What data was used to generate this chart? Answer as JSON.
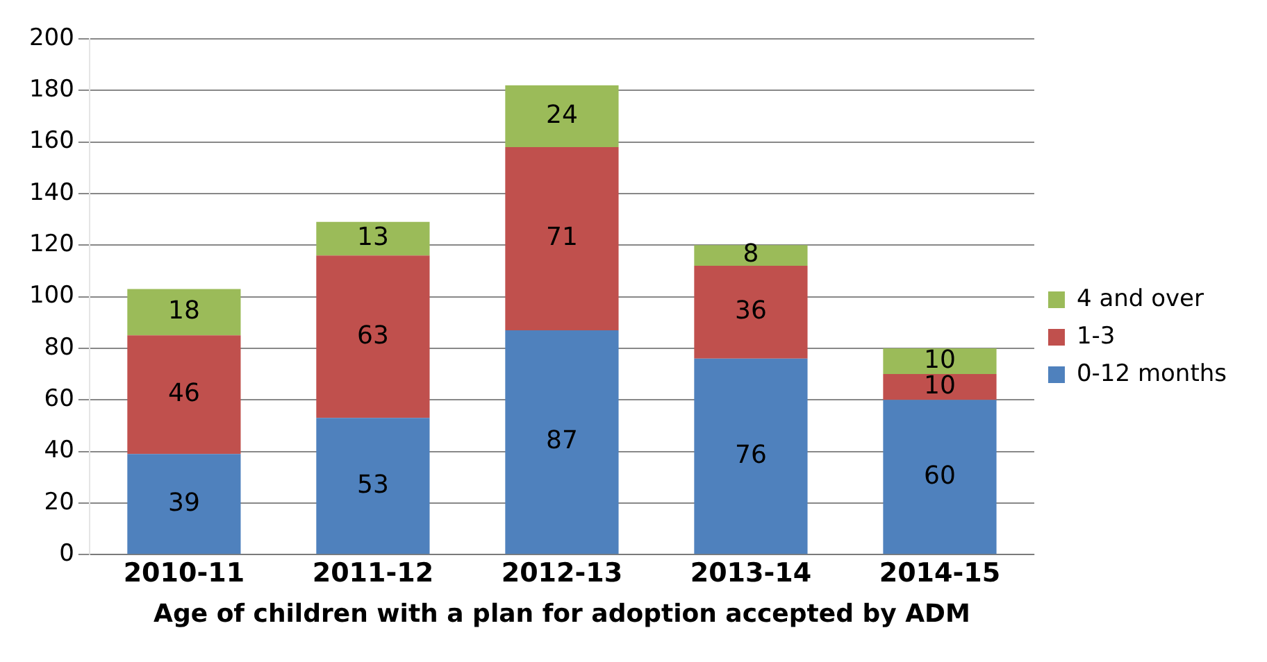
{
  "chart_data": {
    "type": "bar",
    "stacked": true,
    "xlabel": "Age of children with a plan for adoption accepted by ADM",
    "categories": [
      "2010-11",
      "2011-12",
      "2012-13",
      "2013-14",
      "2014-15"
    ],
    "series": [
      {
        "name": "0-12 months",
        "color": "#4f81bd",
        "values": [
          39,
          53,
          87,
          76,
          60
        ]
      },
      {
        "name": "1-3",
        "color": "#c0504d",
        "values": [
          46,
          63,
          71,
          36,
          10
        ]
      },
      {
        "name": "4 and over",
        "color": "#9bbb59",
        "values": [
          18,
          13,
          24,
          8,
          10
        ]
      }
    ],
    "ylim": [
      0,
      200
    ],
    "yticks": [
      0,
      20,
      40,
      60,
      80,
      100,
      120,
      140,
      160,
      180,
      200
    ],
    "grid": "y",
    "legend": "right",
    "data_labels": true
  }
}
